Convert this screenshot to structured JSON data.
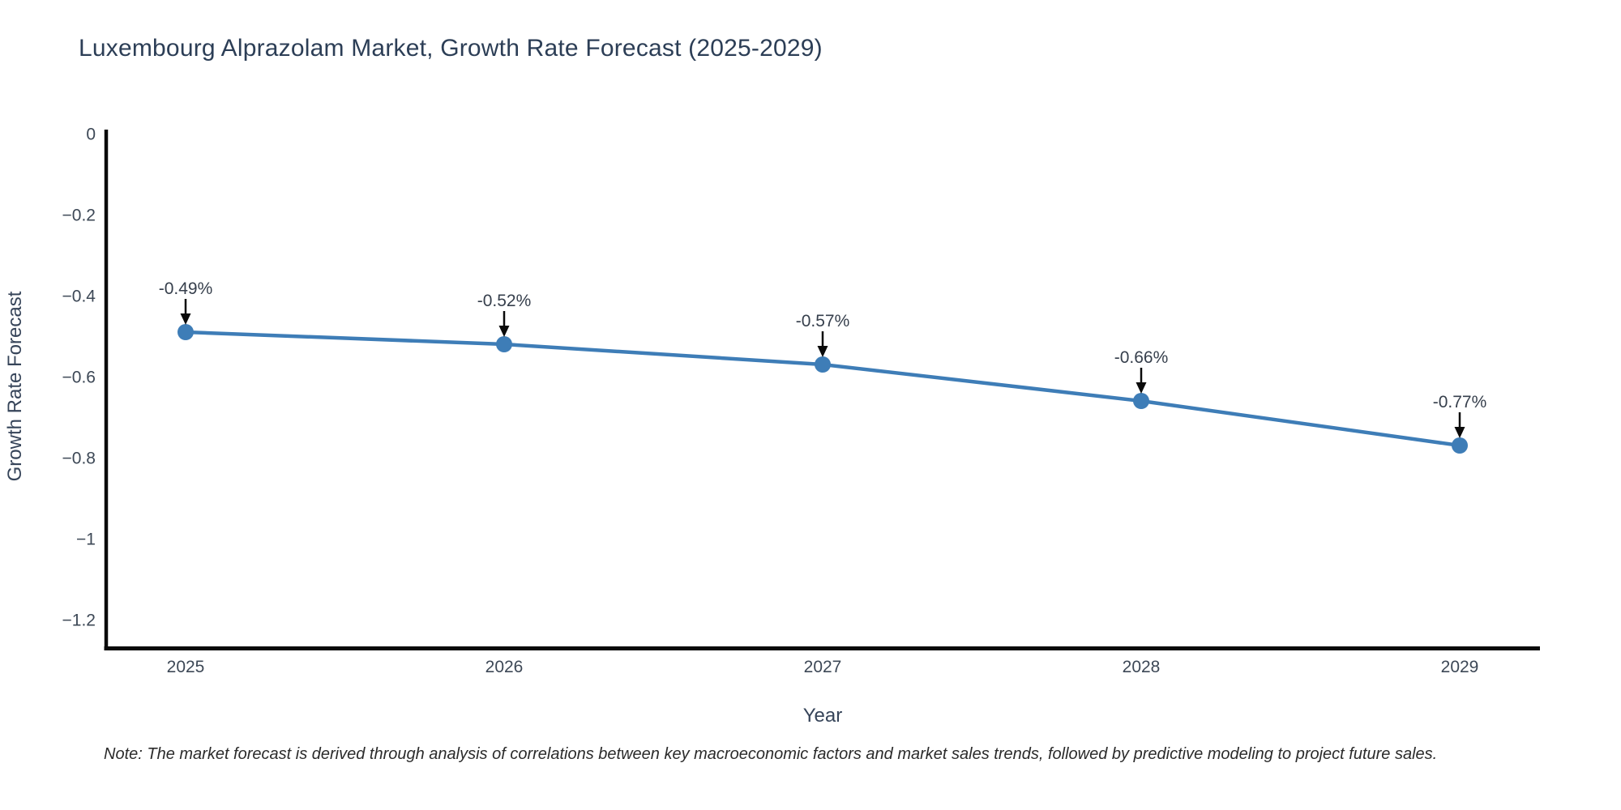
{
  "title": "Luxembourg Alprazolam Market, Growth Rate Forecast (2025-2029)",
  "note": "Note: The market forecast is derived through analysis of correlations between key macroeconomic factors and market sales trends, followed by predictive modeling to project future sales.",
  "chart_data": {
    "type": "line",
    "title": "Luxembourg Alprazolam Market, Growth Rate Forecast (2025-2029)",
    "xlabel": "Year",
    "ylabel": "Growth Rate Forecast",
    "categories": [
      "2025",
      "2026",
      "2027",
      "2028",
      "2029"
    ],
    "series": [
      {
        "name": "Growth Rate Forecast",
        "values": [
          -0.49,
          -0.52,
          -0.57,
          -0.66,
          -0.77
        ],
        "point_labels": [
          "-0.49%",
          "-0.52%",
          "-0.57%",
          "-0.66%",
          "-0.77%"
        ]
      }
    ],
    "y_ticks": [
      0,
      -0.2,
      -0.4,
      -0.6,
      -0.8,
      -1,
      -1.2
    ],
    "y_tick_labels": [
      "0",
      "−0.2",
      "−0.4",
      "−0.6",
      "−0.8",
      "−1",
      "−1.2"
    ],
    "ylim": [
      -1.27,
      0
    ],
    "grid": false,
    "legend_position": "none",
    "annotation_style": "value labels above points with black down arrows",
    "colors": {
      "line": "#3e7db7",
      "marker": "#3e7db7",
      "axis": "#0a0a0a",
      "arrow": "#0a0a0a",
      "tick_label": "#3d4856",
      "title": "#2c3e56"
    }
  }
}
